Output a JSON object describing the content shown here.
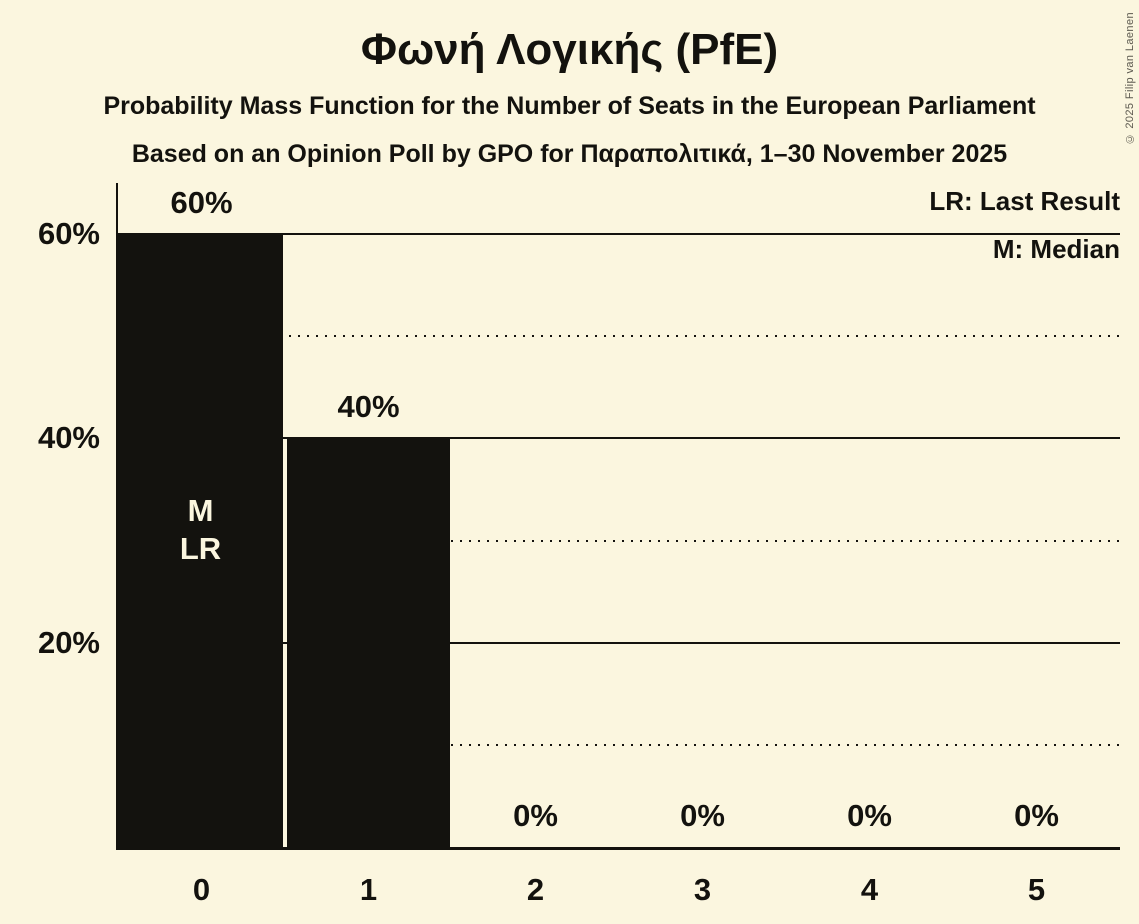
{
  "title": "Φωνή Λογικής (PfE)",
  "subtitle1": "Probability Mass Function for the Number of Seats in the European Parliament",
  "subtitle2": "Based on an Opinion Poll by GPO for Παραπολιτικά, 1–30 November 2025",
  "copyright": "© 2025 Filip van Laenen",
  "legend": {
    "last_result_label": "LR: Last Result",
    "median_label": "M: Median"
  },
  "colors": {
    "background": "#FBF6DF",
    "ink": "#13120E",
    "bar": "#13120E",
    "bar_text": "#FBF6DF",
    "copyright_text": "#5C594F"
  },
  "chart_data": {
    "type": "bar",
    "title": "Φωνή Λογικής (PfE)",
    "xlabel": "",
    "ylabel": "",
    "categories": [
      "0",
      "1",
      "2",
      "3",
      "4",
      "5"
    ],
    "values": [
      60,
      40,
      0,
      0,
      0,
      0
    ],
    "bar_labels": [
      "60%",
      "40%",
      "0%",
      "0%",
      "0%",
      "0%"
    ],
    "bar_annotations": [
      [
        "M",
        "LR"
      ],
      [],
      [],
      [],
      [],
      []
    ],
    "median_category": "0",
    "last_result_category": "0",
    "yticks": [
      {
        "label": "60%",
        "value": 60
      },
      {
        "label": "40%",
        "value": 40
      },
      {
        "label": "20%",
        "value": 20
      }
    ],
    "gridlines_solid": [
      20,
      40,
      60
    ],
    "gridlines_dotted": [
      10,
      30,
      50
    ],
    "ylim": [
      0,
      65
    ],
    "grid": true,
    "legend_position": "top-right"
  }
}
